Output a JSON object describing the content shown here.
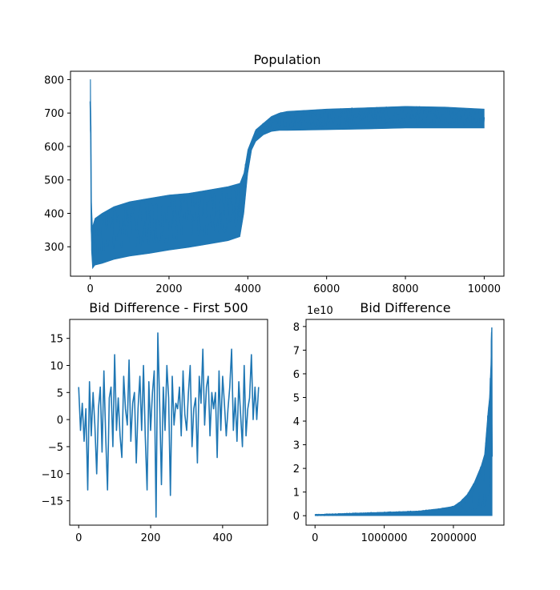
{
  "colors": {
    "series": "#1f77b4",
    "axes": "#000000",
    "background": "#ffffff"
  },
  "chart_data": [
    {
      "id": "population",
      "type": "line",
      "title": "Population",
      "xlabel": "",
      "ylabel": "",
      "xlim": [
        -500,
        10500
      ],
      "ylim": [
        212,
        825
      ],
      "xticks": [
        0,
        2000,
        4000,
        6000,
        8000,
        10000
      ],
      "xtick_labels": [
        "0",
        "2000",
        "4000",
        "6000",
        "8000",
        "10000"
      ],
      "yticks": [
        300,
        400,
        500,
        600,
        700,
        800
      ],
      "ytick_labels": [
        "300",
        "400",
        "500",
        "600",
        "700",
        "800"
      ],
      "grid": false,
      "series": [
        {
          "style": "dense-noisy-band",
          "x": [
            0,
            10,
            30,
            60,
            120,
            300,
            600,
            1000,
            1500,
            2000,
            2500,
            3000,
            3500,
            3800,
            3900,
            4000,
            4100,
            4200,
            4400,
            4600,
            4800,
            5000,
            6000,
            7000,
            8000,
            9000,
            10000
          ],
          "y_max": [
            800,
            800,
            440,
            360,
            385,
            400,
            420,
            435,
            445,
            455,
            460,
            470,
            480,
            490,
            520,
            590,
            620,
            650,
            670,
            690,
            700,
            705,
            712,
            716,
            720,
            718,
            712
          ],
          "y_min": [
            650,
            620,
            290,
            235,
            245,
            250,
            262,
            272,
            280,
            290,
            298,
            308,
            318,
            330,
            400,
            520,
            590,
            615,
            635,
            645,
            648,
            648,
            650,
            652,
            655,
            655,
            655
          ]
        }
      ]
    },
    {
      "id": "bid-difference-first-500",
      "type": "line",
      "title": "Bid Difference - First 500",
      "xlabel": "",
      "ylabel": "",
      "xlim": [
        -25,
        525
      ],
      "ylim": [
        -19.5,
        18.5
      ],
      "xticks": [
        0,
        200,
        400
      ],
      "xtick_labels": [
        "0",
        "200",
        "400"
      ],
      "yticks": [
        -15,
        -10,
        -5,
        0,
        5,
        10,
        15
      ],
      "ytick_labels": [
        "−15",
        "−10",
        "−5",
        "0",
        "5",
        "10",
        "15"
      ],
      "grid": false,
      "series": [
        {
          "style": "line",
          "x": [
            0,
            5,
            10,
            15,
            20,
            25,
            30,
            35,
            40,
            45,
            50,
            55,
            60,
            65,
            70,
            75,
            80,
            85,
            90,
            95,
            100,
            105,
            110,
            115,
            120,
            125,
            130,
            135,
            140,
            145,
            150,
            155,
            160,
            165,
            170,
            175,
            180,
            185,
            190,
            195,
            200,
            205,
            210,
            215,
            220,
            225,
            230,
            235,
            240,
            245,
            250,
            255,
            260,
            265,
            270,
            275,
            280,
            285,
            290,
            295,
            300,
            305,
            310,
            315,
            320,
            325,
            330,
            335,
            340,
            345,
            350,
            355,
            360,
            365,
            370,
            375,
            380,
            385,
            390,
            395,
            400,
            405,
            410,
            415,
            420,
            425,
            430,
            435,
            440,
            445,
            450,
            455,
            460,
            465,
            470,
            475,
            480,
            485,
            490,
            495,
            500
          ],
          "y": [
            6,
            -2,
            3,
            -4,
            2,
            -13,
            7,
            -3,
            5,
            -1,
            -10,
            2,
            6,
            -6,
            9,
            -3,
            -13,
            4,
            6,
            -5,
            12,
            -2,
            4,
            -3,
            -7,
            8,
            2,
            -1,
            11,
            -4,
            3,
            5,
            -8,
            2,
            8,
            -2,
            10,
            -3,
            -13,
            7,
            -2,
            5,
            9,
            -18,
            16,
            3,
            -12,
            6,
            -2,
            10,
            4,
            -14,
            8,
            -1,
            3,
            2,
            6,
            -3,
            9,
            1,
            -2,
            5,
            10,
            -5,
            2,
            4,
            -8,
            8,
            3,
            13,
            -1,
            6,
            8,
            -3,
            5,
            2,
            5,
            -7,
            9,
            -2,
            8,
            3,
            -3,
            2,
            6,
            13,
            -2,
            4,
            -4,
            7,
            1,
            -5,
            10,
            -3,
            2,
            4,
            12,
            0,
            6,
            0,
            6
          ]
        }
      ]
    },
    {
      "id": "bid-difference",
      "type": "line",
      "title": "Bid Difference",
      "xlabel": "",
      "ylabel": "",
      "offset_label": "1e10",
      "xlim": [
        -130000,
        2730000
      ],
      "ylim": [
        -0.4,
        8.3
      ],
      "xticks": [
        0,
        1000000,
        2000000
      ],
      "xtick_labels": [
        "0",
        "1000000",
        "2000000"
      ],
      "yticks": [
        0,
        1,
        2,
        3,
        4,
        5,
        6,
        7,
        8
      ],
      "ytick_labels": [
        "0",
        "1",
        "2",
        "3",
        "4",
        "5",
        "6",
        "7",
        "8"
      ],
      "grid": false,
      "series": [
        {
          "style": "dense-noisy-band",
          "x": [
            0,
            500000,
            1000000,
            1500000,
            1800000,
            2000000,
            2100000,
            2200000,
            2300000,
            2400000,
            2450000,
            2500000,
            2520000,
            2540000,
            2550000,
            2560000
          ],
          "y_max": [
            0.05,
            0.1,
            0.15,
            0.2,
            0.3,
            0.4,
            0.6,
            0.9,
            1.4,
            2.1,
            2.6,
            4.4,
            5.0,
            6.4,
            7.95,
            7.95
          ],
          "y_min": [
            0,
            0,
            0,
            0,
            0,
            0,
            0,
            0,
            0,
            0,
            0,
            0,
            0,
            0,
            0,
            0
          ]
        }
      ]
    }
  ]
}
